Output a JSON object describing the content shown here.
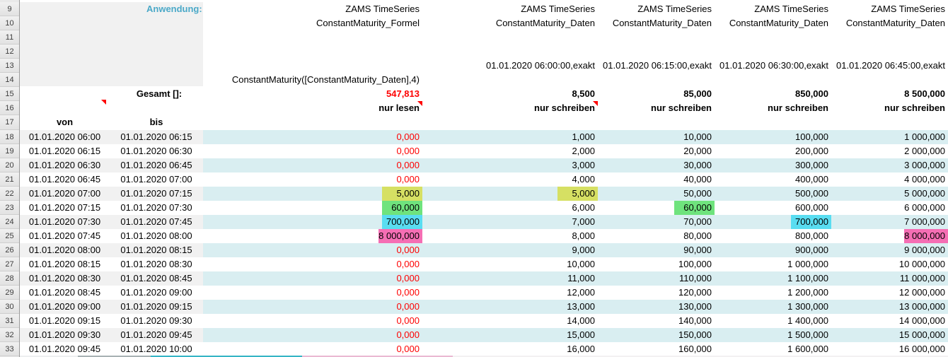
{
  "labels": {
    "anwendung": "Anwendung:",
    "gesamt": "Gesamt []:",
    "von": "von",
    "bis": "bis"
  },
  "colors": {
    "accent_teal": "#4ba9c8",
    "negative_red": "#fe0000",
    "stripe_gray": "#f1f1f1",
    "stripe_cyan": "#d9eef1"
  },
  "highlight_colors": {
    "yellow": "#d6e063",
    "green": "#6fe37d",
    "cyan": "#59ddf1",
    "pink": "#f56eb4"
  },
  "columns": [
    {
      "id": "formel",
      "header_line1": "ZAMS TimeSeries",
      "header_line2": "ConstantMaturity_Formel",
      "timestamp": "",
      "formula": "ConstantMaturity([ConstantMaturity_Daten],4)",
      "gesamt": "547,813",
      "gesamt_red": true,
      "mode": "nur lesen",
      "comment_marker": true
    },
    {
      "id": "daten-06-00",
      "header_line1": "ZAMS TimeSeries",
      "header_line2": "ConstantMaturity_Daten",
      "timestamp": "01.01.2020 06:00:00,exakt",
      "formula": "",
      "gesamt": "8,500",
      "gesamt_red": false,
      "mode": "nur schreiben",
      "comment_marker": true
    },
    {
      "id": "daten-06-15",
      "header_line1": "ZAMS TimeSeries",
      "header_line2": "ConstantMaturity_Daten",
      "timestamp": "01.01.2020 06:15:00,exakt",
      "formula": "",
      "gesamt": "85,000",
      "gesamt_red": false,
      "mode": "nur schreiben",
      "comment_marker": false
    },
    {
      "id": "daten-06-30",
      "header_line1": "ZAMS TimeSeries",
      "header_line2": "ConstantMaturity_Daten",
      "timestamp": "01.01.2020 06:30:00,exakt",
      "formula": "",
      "gesamt": "850,000",
      "gesamt_red": false,
      "mode": "nur schreiben",
      "comment_marker": false
    },
    {
      "id": "daten-06-45",
      "header_line1": "ZAMS TimeSeries",
      "header_line2": "ConstantMaturity_Daten",
      "timestamp": "01.01.2020 06:45:00,exakt",
      "formula": "",
      "gesamt": "8 500,000",
      "gesamt_red": false,
      "mode": "nur schreiben",
      "comment_marker": false
    }
  ],
  "row_numbers": [
    9,
    10,
    11,
    12,
    13,
    14,
    15,
    16,
    17,
    18,
    19,
    20,
    21,
    22,
    23,
    24,
    25,
    26,
    27,
    28,
    29,
    30,
    31,
    32,
    33
  ],
  "rows": [
    {
      "num": 18,
      "von": "01.01.2020 06:00",
      "bis": "01.01.2020 06:15",
      "cells": [
        {
          "v": "0,000",
          "red": true
        },
        {
          "v": "1,000"
        },
        {
          "v": "10,000"
        },
        {
          "v": "100,000"
        },
        {
          "v": "1 000,000"
        }
      ]
    },
    {
      "num": 19,
      "von": "01.01.2020 06:15",
      "bis": "01.01.2020 06:30",
      "cells": [
        {
          "v": "0,000",
          "red": true
        },
        {
          "v": "2,000"
        },
        {
          "v": "20,000"
        },
        {
          "v": "200,000"
        },
        {
          "v": "2 000,000"
        }
      ]
    },
    {
      "num": 20,
      "von": "01.01.2020 06:30",
      "bis": "01.01.2020 06:45",
      "cells": [
        {
          "v": "0,000",
          "red": true
        },
        {
          "v": "3,000"
        },
        {
          "v": "30,000"
        },
        {
          "v": "300,000"
        },
        {
          "v": "3 000,000"
        }
      ]
    },
    {
      "num": 21,
      "von": "01.01.2020 06:45",
      "bis": "01.01.2020 07:00",
      "cells": [
        {
          "v": "0,000",
          "red": true
        },
        {
          "v": "4,000"
        },
        {
          "v": "40,000"
        },
        {
          "v": "400,000"
        },
        {
          "v": "4 000,000"
        }
      ]
    },
    {
      "num": 22,
      "von": "01.01.2020 07:00",
      "bis": "01.01.2020 07:15",
      "cells": [
        {
          "v": "5,000",
          "hl": "yellow"
        },
        {
          "v": "5,000",
          "hl": "yellow"
        },
        {
          "v": "50,000"
        },
        {
          "v": "500,000"
        },
        {
          "v": "5 000,000"
        }
      ]
    },
    {
      "num": 23,
      "von": "01.01.2020 07:15",
      "bis": "01.01.2020 07:30",
      "cells": [
        {
          "v": "60,000",
          "hl": "green"
        },
        {
          "v": "6,000"
        },
        {
          "v": "60,000",
          "hl": "green"
        },
        {
          "v": "600,000"
        },
        {
          "v": "6 000,000"
        }
      ]
    },
    {
      "num": 24,
      "von": "01.01.2020 07:30",
      "bis": "01.01.2020 07:45",
      "cells": [
        {
          "v": "700,000",
          "hl": "cyan"
        },
        {
          "v": "7,000"
        },
        {
          "v": "70,000"
        },
        {
          "v": "700,000",
          "hl": "cyan"
        },
        {
          "v": "7 000,000"
        }
      ]
    },
    {
      "num": 25,
      "von": "01.01.2020 07:45",
      "bis": "01.01.2020 08:00",
      "cells": [
        {
          "v": "8 000,000",
          "hl": "pink"
        },
        {
          "v": "8,000"
        },
        {
          "v": "80,000"
        },
        {
          "v": "800,000"
        },
        {
          "v": "8 000,000",
          "hl": "pink"
        }
      ]
    },
    {
      "num": 26,
      "von": "01.01.2020 08:00",
      "bis": "01.01.2020 08:15",
      "cells": [
        {
          "v": "0,000",
          "red": true
        },
        {
          "v": "9,000"
        },
        {
          "v": "90,000"
        },
        {
          "v": "900,000"
        },
        {
          "v": "9 000,000"
        }
      ]
    },
    {
      "num": 27,
      "von": "01.01.2020 08:15",
      "bis": "01.01.2020 08:30",
      "cells": [
        {
          "v": "0,000",
          "red": true
        },
        {
          "v": "10,000"
        },
        {
          "v": "100,000"
        },
        {
          "v": "1 000,000"
        },
        {
          "v": "10 000,000"
        }
      ]
    },
    {
      "num": 28,
      "von": "01.01.2020 08:30",
      "bis": "01.01.2020 08:45",
      "cells": [
        {
          "v": "0,000",
          "red": true
        },
        {
          "v": "11,000"
        },
        {
          "v": "110,000"
        },
        {
          "v": "1 100,000"
        },
        {
          "v": "11 000,000"
        }
      ]
    },
    {
      "num": 29,
      "von": "01.01.2020 08:45",
      "bis": "01.01.2020 09:00",
      "cells": [
        {
          "v": "0,000",
          "red": true
        },
        {
          "v": "12,000"
        },
        {
          "v": "120,000"
        },
        {
          "v": "1 200,000"
        },
        {
          "v": "12 000,000"
        }
      ]
    },
    {
      "num": 30,
      "von": "01.01.2020 09:00",
      "bis": "01.01.2020 09:15",
      "cells": [
        {
          "v": "0,000",
          "red": true
        },
        {
          "v": "13,000"
        },
        {
          "v": "130,000"
        },
        {
          "v": "1 300,000"
        },
        {
          "v": "13 000,000"
        }
      ]
    },
    {
      "num": 31,
      "von": "01.01.2020 09:15",
      "bis": "01.01.2020 09:30",
      "cells": [
        {
          "v": "0,000",
          "red": true
        },
        {
          "v": "14,000"
        },
        {
          "v": "140,000"
        },
        {
          "v": "1 400,000"
        },
        {
          "v": "14 000,000"
        }
      ]
    },
    {
      "num": 32,
      "von": "01.01.2020 09:30",
      "bis": "01.01.2020 09:45",
      "cells": [
        {
          "v": "0,000",
          "red": true
        },
        {
          "v": "15,000"
        },
        {
          "v": "150,000"
        },
        {
          "v": "1 500,000"
        },
        {
          "v": "15 000,000"
        }
      ]
    },
    {
      "num": 33,
      "von": "01.01.2020 09:45",
      "bis": "01.01.2020 10:00",
      "cells": [
        {
          "v": "0,000",
          "red": true
        },
        {
          "v": "16,000"
        },
        {
          "v": "160,000"
        },
        {
          "v": "1 600,000"
        },
        {
          "v": "16 000,000"
        }
      ]
    }
  ]
}
